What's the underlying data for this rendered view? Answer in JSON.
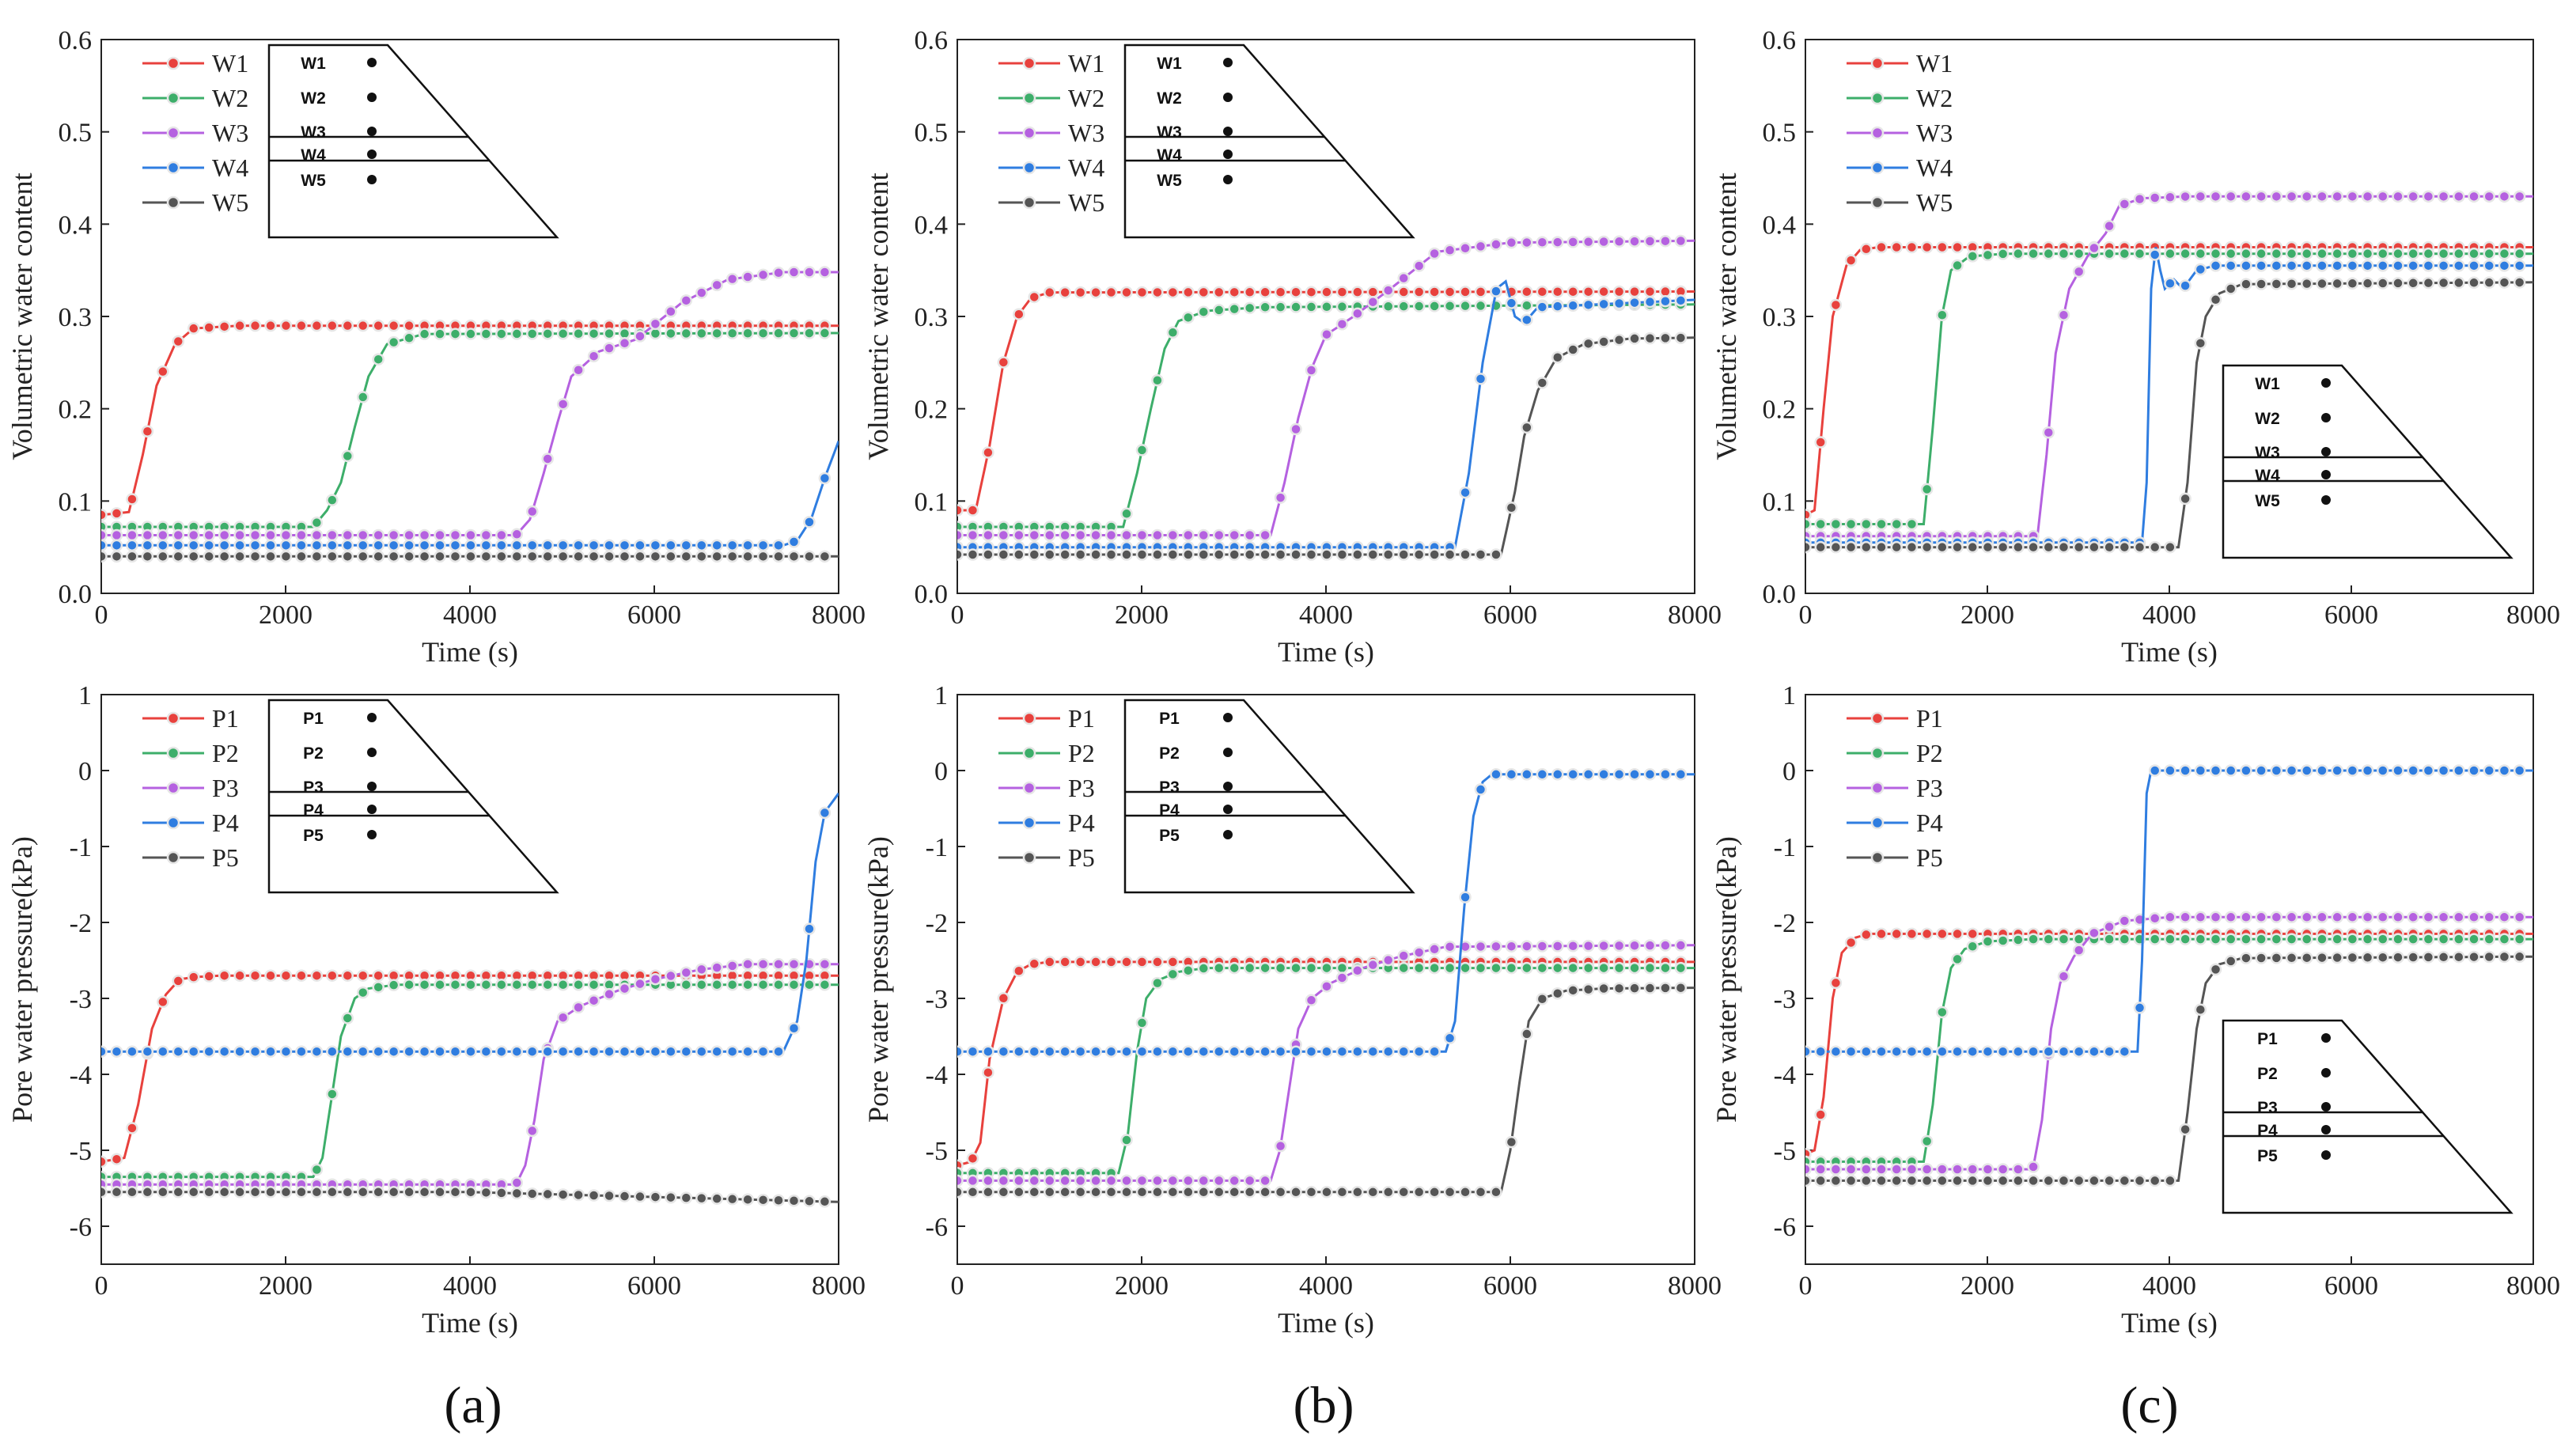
{
  "colors": {
    "s1": "#e8413d",
    "s2": "#3dae6a",
    "s3": "#b561e0",
    "s4": "#2f7de0",
    "s5": "#555555"
  },
  "panel_labels": [
    "(a)",
    "(b)",
    "(c)"
  ],
  "chart_data": [
    {
      "id": "a-water",
      "type": "line",
      "title": "",
      "xlabel": "Time (s)",
      "ylabel": "Volumetric water content",
      "xlim": [
        0,
        8000
      ],
      "ylim": [
        0,
        0.6
      ],
      "xticks": [
        "0",
        "2000",
        "4000",
        "6000",
        "8000"
      ],
      "yticks": [
        "0.0",
        "0.1",
        "0.2",
        "0.3",
        "0.4",
        "0.5",
        "0.6"
      ],
      "legend_position": "top-left",
      "inset_position": "top",
      "inset_labels": [
        "W1",
        "W2",
        "W3",
        "W4",
        "W5"
      ],
      "series": [
        {
          "name": "W1",
          "color": "s1",
          "x": [
            0,
            300,
            450,
            600,
            800,
            1000,
            1500,
            8000
          ],
          "y": [
            0.085,
            0.088,
            0.15,
            0.225,
            0.27,
            0.287,
            0.29,
            0.29
          ]
        },
        {
          "name": "W2",
          "color": "s2",
          "x": [
            0,
            2300,
            2450,
            2600,
            2750,
            2900,
            3100,
            3500,
            8000
          ],
          "y": [
            0.072,
            0.072,
            0.09,
            0.12,
            0.18,
            0.235,
            0.27,
            0.281,
            0.282
          ]
        },
        {
          "name": "W3",
          "color": "s3",
          "x": [
            0,
            4500,
            4650,
            4800,
            4950,
            5100,
            5400,
            5800,
            6300,
            6800,
            7400,
            8000
          ],
          "y": [
            0.063,
            0.063,
            0.08,
            0.13,
            0.185,
            0.235,
            0.262,
            0.275,
            0.315,
            0.34,
            0.348,
            0.348
          ]
        },
        {
          "name": "W4",
          "color": "s4",
          "x": [
            0,
            7400,
            7550,
            7700,
            7850,
            8000
          ],
          "y": [
            0.052,
            0.052,
            0.057,
            0.08,
            0.125,
            0.165
          ]
        },
        {
          "name": "W5",
          "color": "s5",
          "x": [
            0,
            8000
          ],
          "y": [
            0.04,
            0.04
          ]
        }
      ]
    },
    {
      "id": "b-water",
      "type": "line",
      "title": "",
      "xlabel": "Time (s)",
      "ylabel": "Volumetric water content",
      "xlim": [
        0,
        8000
      ],
      "ylim": [
        0,
        0.6
      ],
      "xticks": [
        "0",
        "2000",
        "4000",
        "6000",
        "8000"
      ],
      "yticks": [
        "0.0",
        "0.1",
        "0.2",
        "0.3",
        "0.4",
        "0.5",
        "0.6"
      ],
      "legend_position": "top-left",
      "inset_position": "top",
      "inset_labels": [
        "W1",
        "W2",
        "W3",
        "W4",
        "W5"
      ],
      "series": [
        {
          "name": "W1",
          "color": "s1",
          "x": [
            0,
            200,
            350,
            500,
            650,
            800,
            1000,
            8000
          ],
          "y": [
            0.09,
            0.09,
            0.16,
            0.25,
            0.3,
            0.32,
            0.326,
            0.327
          ]
        },
        {
          "name": "W2",
          "color": "s2",
          "x": [
            0,
            1800,
            1950,
            2100,
            2250,
            2400,
            2700,
            3300,
            8000
          ],
          "y": [
            0.072,
            0.072,
            0.13,
            0.2,
            0.265,
            0.295,
            0.306,
            0.31,
            0.313
          ]
        },
        {
          "name": "W3",
          "color": "s3",
          "x": [
            0,
            3400,
            3550,
            3700,
            3850,
            4000,
            4300,
            4700,
            5200,
            6000,
            8000
          ],
          "y": [
            0.063,
            0.063,
            0.12,
            0.19,
            0.245,
            0.28,
            0.3,
            0.33,
            0.37,
            0.38,
            0.382
          ]
        },
        {
          "name": "W4",
          "color": "s4",
          "x": [
            0,
            5400,
            5550,
            5700,
            5850,
            5950,
            6050,
            6150,
            6300,
            8000
          ],
          "y": [
            0.05,
            0.05,
            0.13,
            0.25,
            0.33,
            0.338,
            0.3,
            0.293,
            0.31,
            0.318
          ]
        },
        {
          "name": "W5",
          "color": "s5",
          "x": [
            0,
            5900,
            6050,
            6150,
            6300,
            6500,
            6800,
            7300,
            8000
          ],
          "y": [
            0.042,
            0.042,
            0.11,
            0.17,
            0.22,
            0.255,
            0.27,
            0.276,
            0.277
          ]
        }
      ]
    },
    {
      "id": "c-water",
      "type": "line",
      "title": "",
      "xlabel": "Time (s)",
      "ylabel": "Volumetric water content",
      "xlim": [
        0,
        8000
      ],
      "ylim": [
        0,
        0.6
      ],
      "xticks": [
        "0",
        "2000",
        "4000",
        "6000",
        "8000"
      ],
      "yticks": [
        "0.0",
        "0.1",
        "0.2",
        "0.3",
        "0.4",
        "0.5",
        "0.6"
      ],
      "legend_position": "top-left",
      "inset_position": "bottom-right",
      "inset_labels": [
        "W1",
        "W2",
        "W3",
        "W4",
        "W5"
      ],
      "series": [
        {
          "name": "W1",
          "color": "s1",
          "x": [
            0,
            100,
            200,
            300,
            450,
            600,
            800,
            8000
          ],
          "y": [
            0.085,
            0.09,
            0.2,
            0.3,
            0.355,
            0.372,
            0.375,
            0.375
          ]
        },
        {
          "name": "W2",
          "color": "s2",
          "x": [
            0,
            1300,
            1400,
            1500,
            1600,
            1800,
            2200,
            8000
          ],
          "y": [
            0.075,
            0.075,
            0.18,
            0.3,
            0.35,
            0.365,
            0.368,
            0.368
          ]
        },
        {
          "name": "W3",
          "color": "s3",
          "x": [
            0,
            2550,
            2650,
            2750,
            2900,
            3100,
            3300,
            3450,
            3700,
            4200,
            8000
          ],
          "y": [
            0.062,
            0.062,
            0.15,
            0.26,
            0.33,
            0.365,
            0.39,
            0.42,
            0.428,
            0.43,
            0.43
          ]
        },
        {
          "name": "W4",
          "color": "s4",
          "x": [
            0,
            3700,
            3750,
            3800,
            3850,
            3900,
            3950,
            4050,
            4150,
            4300,
            4500,
            8000
          ],
          "y": [
            0.055,
            0.055,
            0.12,
            0.33,
            0.375,
            0.35,
            0.33,
            0.34,
            0.33,
            0.35,
            0.355,
            0.355
          ]
        },
        {
          "name": "W5",
          "color": "s5",
          "x": [
            0,
            4100,
            4200,
            4300,
            4400,
            4550,
            4800,
            8000
          ],
          "y": [
            0.05,
            0.05,
            0.12,
            0.25,
            0.3,
            0.325,
            0.335,
            0.337
          ]
        }
      ]
    },
    {
      "id": "a-pressure",
      "type": "line",
      "title": "",
      "xlabel": "Time (s)",
      "ylabel": "Pore water pressure(kPa)",
      "xlim": [
        0,
        8000
      ],
      "ylim": [
        -6.5,
        1
      ],
      "xticks": [
        "0",
        "2000",
        "4000",
        "6000",
        "8000"
      ],
      "yticks": [
        "-6",
        "-5",
        "-4",
        "-3",
        "-2",
        "-1",
        "0",
        "1"
      ],
      "legend_position": "top-left",
      "inset_position": "top",
      "inset_labels": [
        "P1",
        "P2",
        "P3",
        "P4",
        "P5"
      ],
      "series": [
        {
          "name": "P1",
          "color": "s1",
          "x": [
            0,
            250,
            400,
            550,
            700,
            850,
            1000,
            1300,
            8000
          ],
          "y": [
            -5.15,
            -5.1,
            -4.4,
            -3.4,
            -2.95,
            -2.75,
            -2.72,
            -2.7,
            -2.7
          ]
        },
        {
          "name": "P2",
          "color": "s2",
          "x": [
            0,
            2300,
            2400,
            2500,
            2600,
            2750,
            2900,
            3200,
            8000
          ],
          "y": [
            -5.35,
            -5.35,
            -5.1,
            -4.3,
            -3.5,
            -3.0,
            -2.87,
            -2.82,
            -2.82
          ]
        },
        {
          "name": "P3",
          "color": "s3",
          "x": [
            0,
            4500,
            4600,
            4700,
            4800,
            4950,
            5200,
            5600,
            6000,
            6500,
            7000,
            8000
          ],
          "y": [
            -5.45,
            -5.45,
            -5.2,
            -4.6,
            -3.8,
            -3.3,
            -3.1,
            -2.9,
            -2.75,
            -2.62,
            -2.55,
            -2.55
          ]
        },
        {
          "name": "P4",
          "color": "s4",
          "x": [
            0,
            7400,
            7550,
            7650,
            7750,
            7850,
            8000
          ],
          "y": [
            -3.7,
            -3.7,
            -3.3,
            -2.5,
            -1.2,
            -0.55,
            -0.3
          ]
        },
        {
          "name": "P5",
          "color": "s5",
          "x": [
            0,
            4000,
            8000
          ],
          "y": [
            -5.55,
            -5.55,
            -5.68
          ]
        }
      ]
    },
    {
      "id": "b-pressure",
      "type": "line",
      "title": "",
      "xlabel": "Time (s)",
      "ylabel": "Pore water pressure(kPa)",
      "xlim": [
        0,
        8000
      ],
      "ylim": [
        -6.5,
        1
      ],
      "xticks": [
        "0",
        "2000",
        "4000",
        "6000",
        "8000"
      ],
      "yticks": [
        "-6",
        "-5",
        "-4",
        "-3",
        "-2",
        "-1",
        "0",
        "1"
      ],
      "legend_position": "top-left",
      "inset_position": "top",
      "inset_labels": [
        "P1",
        "P2",
        "P3",
        "P4",
        "P5"
      ],
      "series": [
        {
          "name": "P1",
          "color": "s1",
          "x": [
            0,
            150,
            250,
            350,
            500,
            650,
            800,
            1000,
            8000
          ],
          "y": [
            -5.2,
            -5.15,
            -4.9,
            -3.8,
            -3.0,
            -2.65,
            -2.55,
            -2.52,
            -2.52
          ]
        },
        {
          "name": "P2",
          "color": "s2",
          "x": [
            0,
            1750,
            1850,
            1950,
            2050,
            2200,
            2400,
            2700,
            8000
          ],
          "y": [
            -5.3,
            -5.3,
            -4.8,
            -3.7,
            -3.0,
            -2.75,
            -2.65,
            -2.6,
            -2.6
          ]
        },
        {
          "name": "P3",
          "color": "s3",
          "x": [
            0,
            3400,
            3500,
            3600,
            3700,
            3850,
            4050,
            4400,
            4800,
            5300,
            8000
          ],
          "y": [
            -5.4,
            -5.4,
            -5.0,
            -4.2,
            -3.4,
            -3.0,
            -2.8,
            -2.6,
            -2.45,
            -2.32,
            -2.3
          ]
        },
        {
          "name": "P4",
          "color": "s4",
          "x": [
            0,
            5300,
            5400,
            5500,
            5600,
            5700,
            5800,
            6000,
            8000
          ],
          "y": [
            -3.7,
            -3.7,
            -3.3,
            -1.8,
            -0.6,
            -0.15,
            -0.05,
            -0.05,
            -0.05
          ]
        },
        {
          "name": "P5",
          "color": "s5",
          "x": [
            0,
            5900,
            6000,
            6100,
            6200,
            6350,
            6600,
            7000,
            8000
          ],
          "y": [
            -5.55,
            -5.55,
            -5.0,
            -4.1,
            -3.3,
            -3.0,
            -2.9,
            -2.87,
            -2.86
          ]
        }
      ]
    },
    {
      "id": "c-pressure",
      "type": "line",
      "title": "",
      "xlabel": "Time (s)",
      "ylabel": "Pore water pressure(kPa)",
      "xlim": [
        0,
        8000
      ],
      "ylim": [
        -6.5,
        1
      ],
      "xticks": [
        "0",
        "2000",
        "4000",
        "6000",
        "8000"
      ],
      "yticks": [
        "-6",
        "-5",
        "-4",
        "-3",
        "-2",
        "-1",
        "0",
        "1"
      ],
      "legend_position": "top-left",
      "inset_position": "bottom-right",
      "inset_labels": [
        "P1",
        "P2",
        "P3",
        "P4",
        "P5"
      ],
      "series": [
        {
          "name": "P1",
          "color": "s1",
          "x": [
            0,
            100,
            200,
            300,
            400,
            550,
            700,
            1000,
            8000
          ],
          "y": [
            -5.05,
            -5.0,
            -4.3,
            -3.0,
            -2.4,
            -2.2,
            -2.15,
            -2.15,
            -2.15
          ]
        },
        {
          "name": "P2",
          "color": "s2",
          "x": [
            0,
            1300,
            1400,
            1500,
            1600,
            1750,
            2000,
            2500,
            8000
          ],
          "y": [
            -5.15,
            -5.15,
            -4.4,
            -3.2,
            -2.6,
            -2.35,
            -2.25,
            -2.22,
            -2.22
          ]
        },
        {
          "name": "P3",
          "color": "s3",
          "x": [
            0,
            2500,
            2600,
            2700,
            2800,
            2950,
            3150,
            3500,
            4000,
            8000
          ],
          "y": [
            -5.25,
            -5.25,
            -4.6,
            -3.4,
            -2.8,
            -2.45,
            -2.15,
            -1.98,
            -1.93,
            -1.93
          ]
        },
        {
          "name": "P4",
          "color": "s4",
          "x": [
            0,
            3650,
            3700,
            3750,
            3800,
            8000
          ],
          "y": [
            -3.7,
            -3.7,
            -2.5,
            -0.3,
            0.0,
            0.0
          ]
        },
        {
          "name": "P5",
          "color": "s5",
          "x": [
            0,
            4100,
            4200,
            4300,
            4400,
            4550,
            4800,
            8000
          ],
          "y": [
            -5.4,
            -5.4,
            -4.5,
            -3.4,
            -2.8,
            -2.55,
            -2.47,
            -2.45
          ]
        }
      ]
    }
  ]
}
